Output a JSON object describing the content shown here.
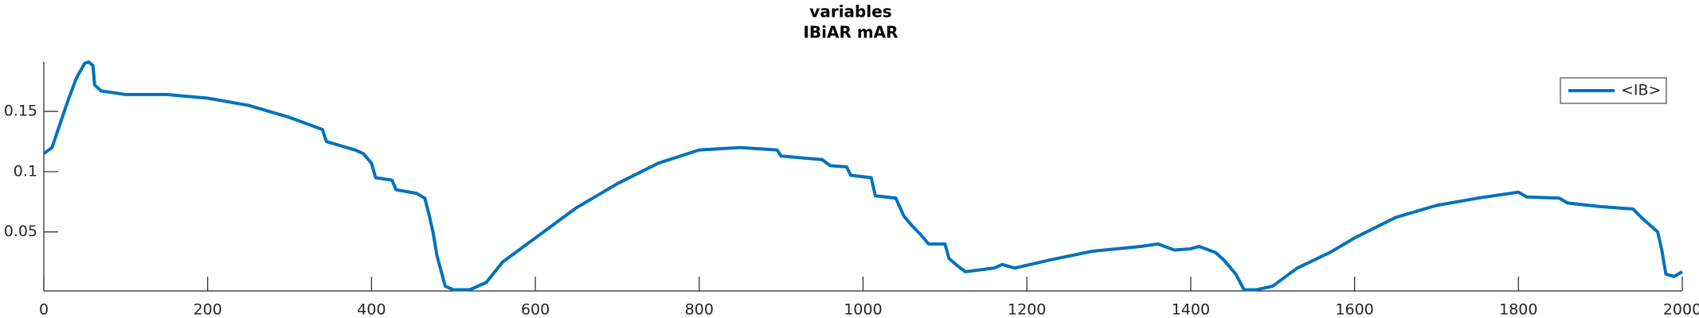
{
  "chart_data": {
    "type": "line",
    "title": "variables",
    "subtitle": "IBiAR mAR",
    "x": [
      0,
      10,
      20,
      30,
      40,
      50,
      55,
      60,
      62,
      70,
      100,
      150,
      200,
      250,
      300,
      340,
      345,
      380,
      390,
      400,
      405,
      425,
      430,
      455,
      465,
      470,
      475,
      480,
      490,
      500,
      520,
      540,
      560,
      600,
      620,
      650,
      700,
      750,
      800,
      850,
      895,
      900,
      950,
      960,
      980,
      985,
      1010,
      1015,
      1040,
      1050,
      1060,
      1070,
      1080,
      1100,
      1105,
      1115,
      1125,
      1160,
      1170,
      1185,
      1230,
      1280,
      1340,
      1360,
      1380,
      1400,
      1410,
      1430,
      1440,
      1455,
      1465,
      1480,
      1500,
      1530,
      1570,
      1600,
      1650,
      1700,
      1750,
      1800,
      1810,
      1850,
      1860,
      1900,
      1940,
      1950,
      1970,
      1975,
      1980,
      1990,
      2000
    ],
    "series": [
      {
        "name": "<IB>",
        "color": "#0072bd",
        "values": [
          0.115,
          0.12,
          0.14,
          0.16,
          0.178,
          0.19,
          0.191,
          0.188,
          0.172,
          0.167,
          0.164,
          0.164,
          0.161,
          0.155,
          0.145,
          0.135,
          0.125,
          0.118,
          0.115,
          0.107,
          0.095,
          0.093,
          0.085,
          0.082,
          0.078,
          0.065,
          0.05,
          0.03,
          0.005,
          0.002,
          0.002,
          0.008,
          0.025,
          0.045,
          0.055,
          0.07,
          0.09,
          0.107,
          0.118,
          0.12,
          0.118,
          0.113,
          0.11,
          0.105,
          0.104,
          0.097,
          0.095,
          0.08,
          0.078,
          0.063,
          0.055,
          0.048,
          0.04,
          0.04,
          0.028,
          0.022,
          0.017,
          0.02,
          0.023,
          0.02,
          0.027,
          0.034,
          0.038,
          0.04,
          0.035,
          0.036,
          0.038,
          0.033,
          0.027,
          0.015,
          0.002,
          0.002,
          0.005,
          0.02,
          0.033,
          0.045,
          0.062,
          0.072,
          0.078,
          0.083,
          0.079,
          0.078,
          0.074,
          0.071,
          0.069,
          0.062,
          0.05,
          0.035,
          0.015,
          0.013,
          0.017
        ]
      }
    ],
    "xlim": [
      0,
      2000
    ],
    "xticks": [
      0,
      200,
      400,
      600,
      800,
      1000,
      1200,
      1400,
      1600,
      1800,
      2000
    ],
    "ylim": [
      0.001,
      0.191
    ],
    "yticks": [
      0.05,
      0.1,
      0.15
    ],
    "legend": "upper right"
  }
}
